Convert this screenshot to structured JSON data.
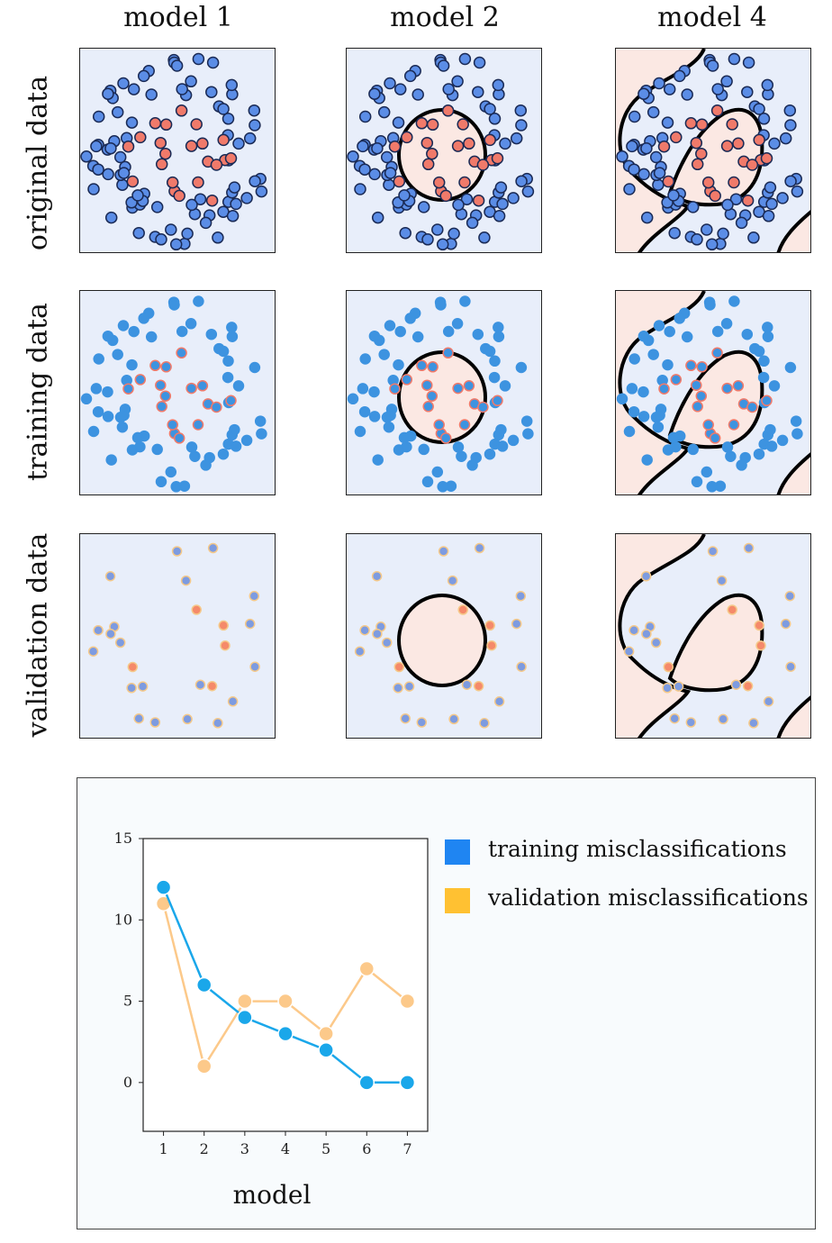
{
  "columns": [
    {
      "id": "m1",
      "title": "model  1"
    },
    {
      "id": "m2",
      "title": "model  2"
    },
    {
      "id": "m4",
      "title": "model  4"
    }
  ],
  "rows": [
    {
      "id": "original",
      "title": "original data"
    },
    {
      "id": "training",
      "title": "training data"
    },
    {
      "id": "validation",
      "title": "validation data"
    }
  ],
  "colors": {
    "panel_background": "#e8eefa",
    "inside_region": "#fbe8e3",
    "boundary": "#000000",
    "original_blue": "#5b8de6",
    "original_red": "#f07a6a",
    "training_point": "#3d93e0",
    "validation_point": "#7d9be0",
    "validation_red": "#f58a6a",
    "training_series": "#1aa7ea",
    "validation_series": "#fcc98a",
    "legend_training": "#1f85f2",
    "legend_validation": "#ffc132"
  },
  "legend": [
    {
      "label": "training misclassifications",
      "color": "#1f85f2"
    },
    {
      "label": "validation misclassifications",
      "color": "#ffc132"
    }
  ],
  "chart_data": {
    "type": "line",
    "xlabel": "model",
    "ylabel": "",
    "x": [
      1,
      2,
      3,
      4,
      5,
      6,
      7
    ],
    "xlim": [
      0.5,
      7.5
    ],
    "ylim": [
      -3,
      15
    ],
    "yticks": [
      0,
      5,
      10,
      15
    ],
    "series": [
      {
        "name": "training misclassifications",
        "values": [
          12,
          6,
          4,
          3,
          2,
          0,
          0
        ]
      },
      {
        "name": "validation misclassifications",
        "values": [
          11,
          1,
          5,
          5,
          3,
          7,
          5
        ]
      }
    ]
  }
}
